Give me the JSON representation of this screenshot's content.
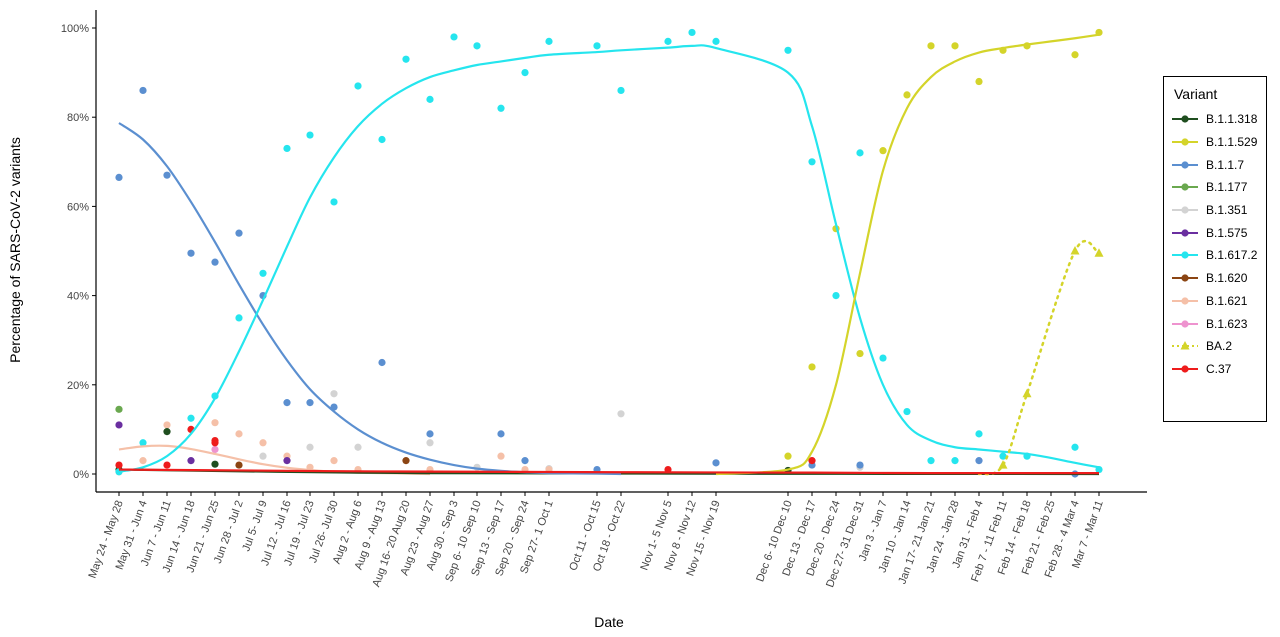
{
  "chart_data": {
    "type": "scatter",
    "xlabel": "Date",
    "ylabel": "Percentage of SARS-CoV-2 variants",
    "ylim": [
      0,
      100
    ],
    "y_ticks": [
      "0%",
      "20%",
      "40%",
      "60%",
      "80%",
      "100%"
    ],
    "y_tick_values": [
      0,
      20,
      40,
      60,
      80,
      100
    ],
    "grid": false,
    "legend_position": "right",
    "legend_title": "Variant",
    "categories": [
      "May 24 - May 28",
      "May 31 - Jun 4",
      "Jun 7 - Jun 11",
      "Jun 14 - Jun 18",
      "Jun 21 - Jun 25",
      "Jun 28 - Jul 2",
      "Jul 5- Jul 9",
      "Jul 12 - Jul 16",
      "Jul 19 - Jul 23",
      "Jul 26- Jul 30",
      "Aug 2 - Aug 6",
      "Aug 9 - Aug 13",
      "Aug 16- 20 Aug 20",
      "Aug 23 - Aug 27",
      "Aug 30 - Sep 3",
      "Sep 6- 10 Sep 10",
      "Sep 13 - Sep 17",
      "Sep 20 - Sep 24",
      "Sep 27- 1 Oct 1",
      "Oct 11 - Oct 15",
      "Oct 18 - Oct 22",
      "Nov 1- 5 Nov 5",
      "Nov 8 - Nov 12",
      "Nov 15 - Nov 19",
      "Dec 6- 10 Dec 10",
      "Dec 13 - Dec 17",
      "Dec 20 - Dec 24",
      "Dec 27- 31 Dec 31",
      "Jan 3 - Jan 7",
      "Jan 10 - Jan 14",
      "Jan 17- 21 Jan 21",
      "Jan 24 - Jan 28",
      "Jan 31 - Feb 4",
      "Feb 7 - 11 Feb 11",
      "Feb 14 - Feb 18",
      "Feb 21 - Feb 25",
      "Feb 28 - 4 Mar 4",
      "Mar 7 - Mar 11"
    ],
    "series": [
      {
        "name": "B.1.1.318",
        "color": "#1f4e1f",
        "marker": "circle",
        "points": [
          [
            0,
            1
          ],
          [
            2,
            9.5
          ],
          [
            4,
            2.2
          ],
          [
            24,
            0.8
          ]
        ],
        "smooth": [
          [
            0,
            1
          ],
          [
            10,
            0.3
          ],
          [
            20,
            0.1
          ],
          [
            37,
            0
          ]
        ]
      },
      {
        "name": "B.1.1.529",
        "color": "#d4d42a",
        "marker": "circle",
        "points": [
          [
            24,
            4
          ],
          [
            25,
            24
          ],
          [
            26,
            55
          ],
          [
            27,
            27
          ],
          [
            28,
            72.5
          ],
          [
            29,
            85
          ],
          [
            30,
            96
          ],
          [
            31,
            96
          ],
          [
            32,
            88
          ],
          [
            33,
            95
          ],
          [
            34,
            96
          ],
          [
            36,
            94
          ],
          [
            37,
            99
          ]
        ],
        "smooth": [
          [
            23,
            0
          ],
          [
            24,
            1
          ],
          [
            25,
            5
          ],
          [
            26,
            20
          ],
          [
            27,
            45
          ],
          [
            28,
            68
          ],
          [
            29,
            82
          ],
          [
            30,
            89
          ],
          [
            31,
            92.5
          ],
          [
            32,
            94.5
          ],
          [
            33,
            95.5
          ],
          [
            34,
            96.3
          ],
          [
            35,
            97
          ],
          [
            36,
            97.7
          ],
          [
            37,
            98.5
          ]
        ]
      },
      {
        "name": "B.1.1.7",
        "color": "#5b8fd0",
        "marker": "circle",
        "points": [
          [
            0,
            66.5
          ],
          [
            1,
            86
          ],
          [
            2,
            67
          ],
          [
            3,
            49.5
          ],
          [
            4,
            47.5
          ],
          [
            5,
            54
          ],
          [
            6,
            40
          ],
          [
            7,
            16
          ],
          [
            8,
            16
          ],
          [
            9,
            15
          ],
          [
            11,
            25
          ],
          [
            13,
            9
          ],
          [
            16,
            9
          ],
          [
            17,
            3
          ],
          [
            19,
            1
          ],
          [
            23,
            2.5
          ],
          [
            25,
            2
          ],
          [
            27,
            2
          ],
          [
            32,
            3
          ],
          [
            36,
            0
          ]
        ],
        "smooth": [
          [
            0,
            78.7
          ],
          [
            1,
            75
          ],
          [
            2,
            69
          ],
          [
            3,
            61
          ],
          [
            4,
            52
          ],
          [
            5,
            42.5
          ],
          [
            6,
            33.5
          ],
          [
            7,
            25.5
          ],
          [
            8,
            19
          ],
          [
            9,
            14
          ],
          [
            10,
            10
          ],
          [
            11,
            7
          ],
          [
            12,
            4.8
          ],
          [
            13,
            3.2
          ],
          [
            14,
            2
          ],
          [
            15,
            1.2
          ],
          [
            16,
            0.7
          ],
          [
            17,
            0.4
          ],
          [
            18,
            0.2
          ],
          [
            19,
            0.1
          ],
          [
            20,
            0
          ]
        ]
      },
      {
        "name": "B.1.177",
        "color": "#6aa84f",
        "marker": "circle",
        "points": [
          [
            0,
            14.5
          ]
        ],
        "smooth": []
      },
      {
        "name": "B.1.351",
        "color": "#d3d3d3",
        "marker": "circle",
        "points": [
          [
            6,
            4
          ],
          [
            8,
            6
          ],
          [
            9,
            18
          ],
          [
            10,
            6
          ],
          [
            13,
            7
          ],
          [
            15,
            1.5
          ],
          [
            18,
            1.2
          ],
          [
            20,
            13.5
          ],
          [
            25,
            3
          ],
          [
            27,
            1.5
          ]
        ],
        "smooth": []
      },
      {
        "name": "B.1.575",
        "color": "#6a2fa0",
        "marker": "circle",
        "points": [
          [
            0,
            11
          ],
          [
            3,
            3
          ],
          [
            7,
            3
          ]
        ],
        "smooth": []
      },
      {
        "name": "B.1.617.2",
        "color": "#25e5ee",
        "marker": "circle",
        "points": [
          [
            0,
            0.5
          ],
          [
            1,
            7
          ],
          [
            3,
            12.5
          ],
          [
            4,
            17.5
          ],
          [
            5,
            35
          ],
          [
            6,
            45
          ],
          [
            7,
            73
          ],
          [
            8,
            76
          ],
          [
            9,
            61
          ],
          [
            10,
            87
          ],
          [
            11,
            75
          ],
          [
            12,
            93
          ],
          [
            13,
            84
          ],
          [
            14,
            98
          ],
          [
            15,
            96
          ],
          [
            16,
            82
          ],
          [
            17,
            90
          ],
          [
            18,
            97
          ],
          [
            19,
            96
          ],
          [
            20,
            86
          ],
          [
            21,
            97
          ],
          [
            22,
            99
          ],
          [
            23,
            97
          ],
          [
            24,
            95
          ],
          [
            25,
            70
          ],
          [
            26,
            40
          ],
          [
            27,
            72
          ],
          [
            28,
            26
          ],
          [
            29,
            14
          ],
          [
            30,
            3
          ],
          [
            31,
            3
          ],
          [
            32,
            9
          ],
          [
            33,
            4
          ],
          [
            34,
            4
          ],
          [
            36,
            6
          ],
          [
            37,
            1
          ]
        ],
        "smooth": [
          [
            0,
            0.5
          ],
          [
            1,
            1.5
          ],
          [
            2,
            4
          ],
          [
            3,
            9
          ],
          [
            4,
            17
          ],
          [
            5,
            27.5
          ],
          [
            6,
            39
          ],
          [
            7,
            51
          ],
          [
            8,
            62
          ],
          [
            9,
            71
          ],
          [
            10,
            78
          ],
          [
            11,
            83
          ],
          [
            12,
            86.5
          ],
          [
            13,
            89
          ],
          [
            14,
            90.5
          ],
          [
            15,
            91.7
          ],
          [
            16,
            92.5
          ],
          [
            17,
            93.3
          ],
          [
            18,
            94
          ],
          [
            19,
            94.6
          ],
          [
            20,
            95
          ],
          [
            21,
            95.6
          ],
          [
            22,
            96
          ],
          [
            23,
            95.5
          ],
          [
            24,
            90
          ],
          [
            25,
            78
          ],
          [
            26,
            56
          ],
          [
            27,
            35
          ],
          [
            28,
            20
          ],
          [
            29,
            11
          ],
          [
            30,
            7.5
          ],
          [
            31,
            6
          ],
          [
            32,
            5.5
          ],
          [
            33,
            5
          ],
          [
            34,
            4.5
          ],
          [
            35,
            3.6
          ],
          [
            36,
            2.5
          ],
          [
            37,
            1.5
          ]
        ]
      },
      {
        "name": "B.1.620",
        "color": "#8b4513",
        "marker": "circle",
        "points": [
          [
            5,
            2
          ],
          [
            12,
            3
          ]
        ],
        "smooth": []
      },
      {
        "name": "B.1.621",
        "color": "#f5c0a8",
        "marker": "circle",
        "points": [
          [
            0,
            0.5
          ],
          [
            1,
            3
          ],
          [
            2,
            11
          ],
          [
            4,
            11.5
          ],
          [
            5,
            9
          ],
          [
            6,
            7
          ],
          [
            7,
            4
          ],
          [
            8,
            1.5
          ],
          [
            9,
            3
          ],
          [
            10,
            1
          ],
          [
            13,
            1
          ],
          [
            16,
            4
          ],
          [
            17,
            1
          ],
          [
            18,
            1
          ]
        ],
        "smooth": [
          [
            0,
            5.5
          ],
          [
            1,
            6.2
          ],
          [
            2,
            6.3
          ],
          [
            3,
            5.6
          ],
          [
            4,
            4.5
          ],
          [
            5,
            3.3
          ],
          [
            6,
            2.2
          ],
          [
            7,
            1.4
          ],
          [
            8,
            0.9
          ],
          [
            9,
            0.5
          ],
          [
            10,
            0.3
          ],
          [
            11,
            0.2
          ],
          [
            12,
            0.1
          ],
          [
            13,
            0
          ]
        ]
      },
      {
        "name": "B.1.623",
        "color": "#ee93cf",
        "marker": "circle",
        "points": [
          [
            4,
            5.5
          ]
        ],
        "smooth": []
      },
      {
        "name": "BA.2",
        "color": "#d4d42a",
        "marker": "triangle",
        "points": [
          [
            33,
            2
          ],
          [
            34,
            18
          ],
          [
            36,
            50
          ],
          [
            37,
            49.5
          ]
        ],
        "dotted": [
          [
            32,
            0
          ],
          [
            33,
            2
          ],
          [
            34,
            18
          ],
          [
            36,
            50
          ],
          [
            37,
            49.5
          ]
        ]
      },
      {
        "name": "C.37",
        "color": "#ee1c1c",
        "marker": "circle",
        "points": [
          [
            0,
            2
          ],
          [
            2,
            2
          ],
          [
            3,
            10
          ],
          [
            4,
            7.5
          ],
          [
            4,
            7
          ],
          [
            21,
            1
          ],
          [
            25,
            3
          ]
        ],
        "smooth": [
          [
            0,
            1
          ],
          [
            5,
            0.8
          ],
          [
            10,
            0.6
          ],
          [
            15,
            0.5
          ],
          [
            20,
            0.4
          ],
          [
            25,
            0.3
          ],
          [
            30,
            0.2
          ],
          [
            37,
            0.2
          ]
        ]
      }
    ]
  }
}
